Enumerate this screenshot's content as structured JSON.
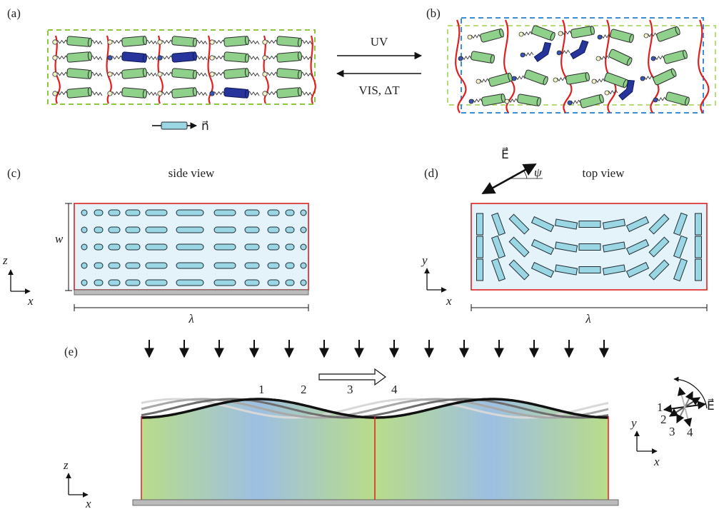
{
  "panels": {
    "a": {
      "label": "(a)"
    },
    "b": {
      "label": "(b)"
    },
    "c": {
      "label": "(c)",
      "title": "side view",
      "axis_vertical": "z",
      "axis_horizontal": "x",
      "width_symbol": "w",
      "length_symbol": "λ"
    },
    "d": {
      "label": "(d)",
      "title": "top view",
      "axis_vertical": "y",
      "axis_horizontal": "x",
      "field_symbol": "E⃗",
      "angle_symbol": "ψ",
      "length_symbol": "λ"
    },
    "e": {
      "label": "(e)",
      "axis_vertical": "z",
      "axis_horizontal": "x",
      "side_axis_vertical": "y",
      "side_axis_horizontal": "x",
      "wave_labels": [
        "1",
        "2",
        "3",
        "4"
      ],
      "field_symbol": "E⃗"
    }
  },
  "transition": {
    "forward": "UV",
    "backward": "VIS, ΔT"
  },
  "director": {
    "symbol": "n⃗"
  },
  "colors": {
    "mesogen": "#8fd08a",
    "mesogen_uv": "#26349c",
    "chain": "#e02020",
    "rod": "#9ad6e3",
    "frame_red": "#e02020",
    "box_green": "#8dc63f",
    "box_blue": "#3b8fd6",
    "film_green": "#b9dc8a",
    "film_blue": "#9dbfe3",
    "substrate": "#bbbbbb"
  },
  "icons": [
    "down-arrow-icon",
    "hollow-right-arrow-icon",
    "double-arrow-icon",
    "curved-arrow-icon"
  ]
}
